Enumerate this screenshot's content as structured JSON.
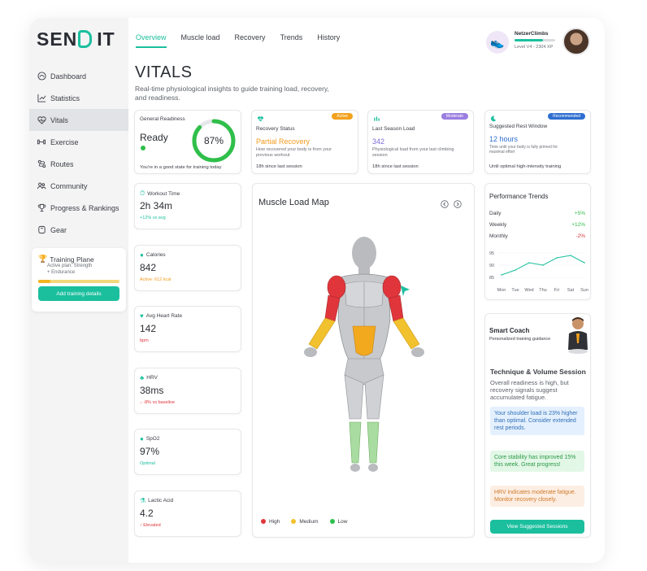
{
  "brand": {
    "logo_left": "SEN",
    "logo_right": "IT"
  },
  "nav": {
    "items": [
      {
        "label": "Dashboard"
      },
      {
        "label": "Statistics"
      },
      {
        "label": "Vitals"
      },
      {
        "label": "Exercise"
      },
      {
        "label": "Routes"
      },
      {
        "label": "Community"
      },
      {
        "label": "Progress & Rankings"
      },
      {
        "label": "Gear"
      }
    ]
  },
  "training_plan": {
    "title": "Training Plane",
    "line1": "Active plan: Strength",
    "line2": "+ Endurance",
    "progress": 0.15,
    "button": "Add training details"
  },
  "tabs": [
    "Overview",
    "Muscle load",
    "Recovery",
    "Trends",
    "History"
  ],
  "user": {
    "name": "NetzerClimbs",
    "level": "Level V4 - 2304 XP",
    "xp_progress": 0.7
  },
  "page": {
    "title": "VITALS",
    "subtitle": "Real-time physiological insights to guide training load, recovery, and readiness."
  },
  "readiness": {
    "label": "General Readiness",
    "status": "Ready",
    "percent_label": "87%",
    "percent": 87,
    "note": "You're in a good state for training today"
  },
  "recovery": {
    "label": "Recovery Status",
    "badge": "Active",
    "value": "Partial Recovery",
    "desc": "How recovered your body is from your previous workout",
    "foot": "18h since last session"
  },
  "season_load": {
    "label": "Last Season Load",
    "badge": "Moderate",
    "value": "342",
    "desc": "Physiological load from your last climbing session",
    "foot": "18h since last session"
  },
  "rest": {
    "label": "Suggested Rest Window",
    "badge": "Recommended",
    "value": "12 hours",
    "desc": "Time until your body is fully primed for maximal effort",
    "foot": "Until optimal high-intensity training"
  },
  "metrics": [
    {
      "label": "Workout Time",
      "value": "2h 34m",
      "note": "+12% vs avg",
      "note_color": "#1bbf9e"
    },
    {
      "label": "Calories",
      "value": "842",
      "note": "Active: 612 kcal",
      "note_color": "#f29a1e"
    },
    {
      "label": "Avg Heart Rate",
      "value": "142",
      "note": "bpm",
      "note_color": "#e0363b"
    },
    {
      "label": "HRV",
      "value": "38ms",
      "note": "↓ -8% vs baseline",
      "note_color": "#e0363b"
    },
    {
      "label": "SpO2",
      "value": "97%",
      "note": "Optimal",
      "note_color": "#1bbf9e"
    },
    {
      "label": "Lactic Acid",
      "value": "4.2",
      "note": "↑ Elevated",
      "note_color": "#e0363b"
    }
  ],
  "muscle_map": {
    "title": "Muscle Load Map",
    "legend": [
      {
        "label": "High",
        "color": "#e0363b"
      },
      {
        "label": "Medium",
        "color": "#f2c12e"
      },
      {
        "label": "Low",
        "color": "#2fbf4a"
      }
    ]
  },
  "trends": {
    "title": "Performance Trends",
    "rows": [
      {
        "label": "Daily",
        "value": "+5%",
        "color": "#2fbf4a"
      },
      {
        "label": "Weekly",
        "value": "+12%",
        "color": "#2fbf4a"
      },
      {
        "label": "Monthly",
        "value": "-2%",
        "color": "#e0363b"
      }
    ],
    "chart_data": {
      "type": "line",
      "x": [
        "Mon",
        "Tue",
        "Wed",
        "Thu",
        "Fri",
        "Sat",
        "Sun"
      ],
      "series": [
        {
          "values": [
            86,
            88,
            91,
            90,
            93,
            94,
            91
          ]
        }
      ],
      "y_ticks": [
        "95",
        "90",
        "85"
      ],
      "ylim": [
        84,
        96
      ]
    }
  },
  "coach": {
    "title": "Smart Coach",
    "subtitle": "Personalized training guidance",
    "heading": "Technique & Volume Session",
    "body": "Overall readiness is high, but recovery signals suggest accumulated fatigue.",
    "tips": [
      {
        "text": "Your shoulder load is 23% higher than optimal. Consider extended rest periods.",
        "bg": "#e4f0fd",
        "fg": "#2f6fb7"
      },
      {
        "text": "Core stability has improved 15% this week. Great progress!",
        "bg": "#e3f7e7",
        "fg": "#2a9a45"
      },
      {
        "text": "HRV indicates moderate fatigue. Monitor recovery closely.",
        "bg": "#fdeee3",
        "fg": "#d07a2a"
      }
    ],
    "button": "View Suggested Sessions"
  }
}
